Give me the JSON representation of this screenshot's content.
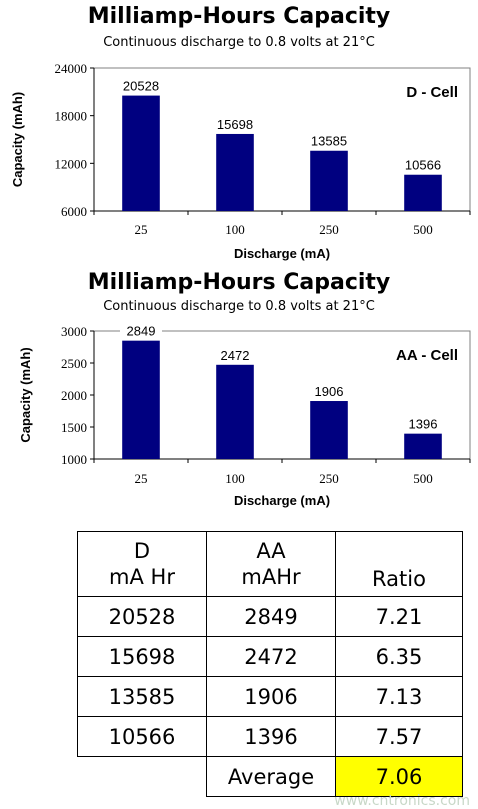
{
  "chart_data": [
    {
      "type": "bar",
      "title": "Milliamp-Hours Capacity",
      "subtitle": "Continuous discharge to 0.8 volts at 21°C",
      "cell_label": "D - Cell",
      "categories": [
        "25",
        "100",
        "250",
        "500"
      ],
      "values": [
        20528,
        15698,
        13585,
        10566
      ],
      "data_labels": [
        "20528",
        "15698",
        "13585",
        "10566"
      ],
      "xlabel": "Discharge (mA)",
      "ylabel": "Capacity (mAh)",
      "ylim": [
        6000,
        24000
      ],
      "yticks": [
        6000,
        12000,
        18000,
        24000
      ],
      "bar_color": "#000080"
    },
    {
      "type": "bar",
      "title": "Milliamp-Hours Capacity",
      "subtitle": "Continuous discharge to 0.8 volts at 21°C",
      "cell_label": "AA - Cell",
      "categories": [
        "25",
        "100",
        "250",
        "500"
      ],
      "values": [
        2849,
        2472,
        1906,
        1396
      ],
      "data_labels": [
        "2849",
        "2472",
        "1906",
        "1396"
      ],
      "xlabel": "Discharge (mA)",
      "ylabel": "Capacity (mAh)",
      "ylim": [
        1000,
        3000
      ],
      "yticks": [
        1000,
        1500,
        2000,
        2500,
        3000
      ],
      "bar_color": "#000080"
    }
  ],
  "table": {
    "headers": [
      "D\nmA Hr",
      "AA\nmAHr",
      "Ratio"
    ],
    "rows": [
      [
        "20528",
        "2849",
        "7.21"
      ],
      [
        "15698",
        "2472",
        "6.35"
      ],
      [
        "13585",
        "1906",
        "7.13"
      ],
      [
        "10566",
        "1396",
        "7.57"
      ]
    ],
    "average_label": "Average",
    "average_value": "7.06",
    "highlight_color": "#ffff00"
  },
  "watermark": "www.cntronics.com"
}
